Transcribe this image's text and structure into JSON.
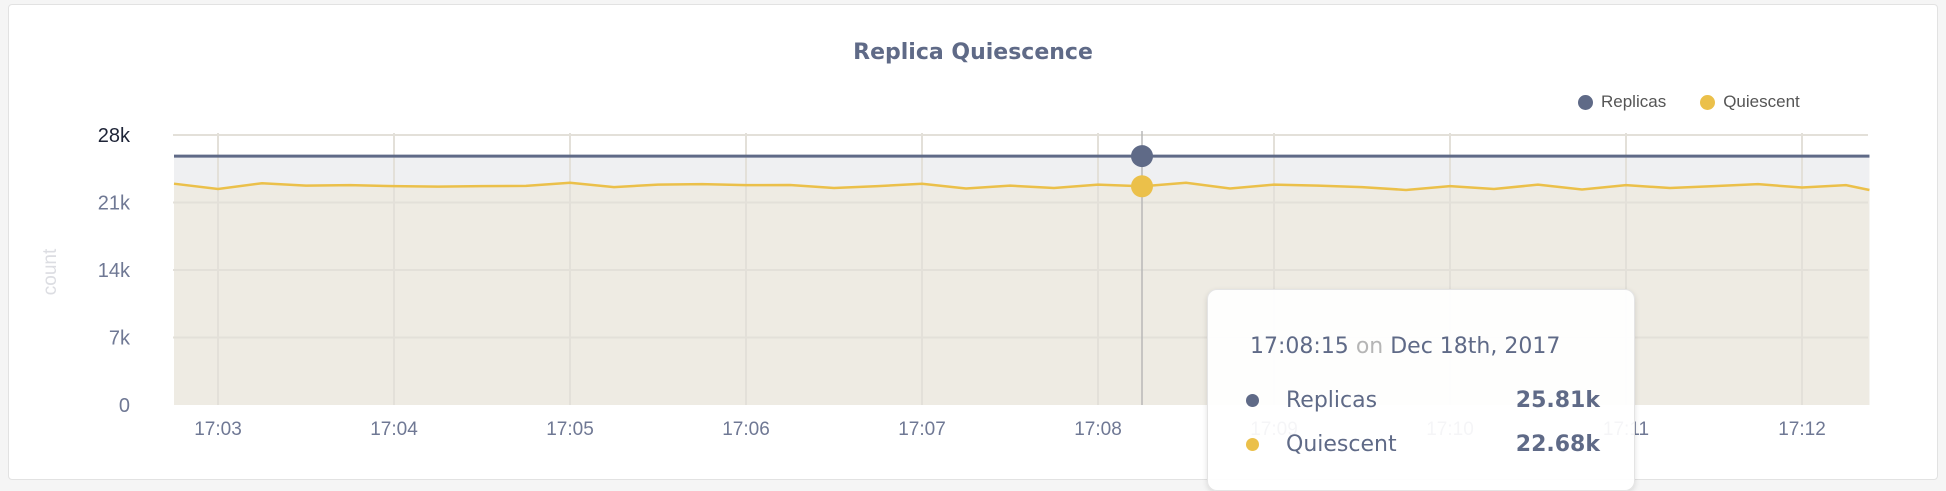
{
  "chart_data": {
    "type": "area",
    "title": "Replica Quiescence",
    "ylabel": "count",
    "xlabel": "",
    "ylim": [
      0,
      28000
    ],
    "yticks": [
      "0",
      "7k",
      "14k",
      "21k",
      "28k"
    ],
    "ytick_values": [
      0,
      7000,
      14000,
      21000,
      28000
    ],
    "xticks": [
      "17:03",
      "17:04",
      "17:05",
      "17:06",
      "17:07",
      "17:08",
      "17:09",
      "17:10",
      "17:11",
      "17:12"
    ],
    "xlim": [
      "17:02:45",
      "17:12:23"
    ],
    "grid": true,
    "legend_position": "top-right",
    "x": [
      "17:02:45",
      "17:03:00",
      "17:03:15",
      "17:03:30",
      "17:03:45",
      "17:04:00",
      "17:04:15",
      "17:04:30",
      "17:04:45",
      "17:05:00",
      "17:05:15",
      "17:05:30",
      "17:05:45",
      "17:06:00",
      "17:06:15",
      "17:06:30",
      "17:06:45",
      "17:07:00",
      "17:07:15",
      "17:07:30",
      "17:07:45",
      "17:08:00",
      "17:08:15",
      "17:08:30",
      "17:08:45",
      "17:09:00",
      "17:09:15",
      "17:09:30",
      "17:09:45",
      "17:10:00",
      "17:10:15",
      "17:10:30",
      "17:10:45",
      "17:11:00",
      "17:11:15",
      "17:11:30",
      "17:11:45",
      "17:12:00",
      "17:12:15",
      "17:12:23"
    ],
    "series": [
      {
        "name": "Replicas",
        "color": "#5f6a87",
        "values": [
          25810,
          25810,
          25810,
          25810,
          25810,
          25810,
          25810,
          25810,
          25810,
          25810,
          25810,
          25810,
          25810,
          25810,
          25810,
          25810,
          25810,
          25810,
          25810,
          25810,
          25810,
          25810,
          25810,
          25810,
          25810,
          25810,
          25810,
          25810,
          25810,
          25810,
          25810,
          25810,
          25810,
          25810,
          25810,
          25810,
          25810,
          25810,
          25810,
          25810
        ]
      },
      {
        "name": "Quiescent",
        "color": "#ebc04a",
        "values": [
          22950,
          22400,
          23000,
          22750,
          22800,
          22700,
          22650,
          22700,
          22720,
          23050,
          22600,
          22850,
          22900,
          22800,
          22820,
          22500,
          22700,
          22950,
          22450,
          22750,
          22500,
          22850,
          22680,
          23050,
          22450,
          22850,
          22750,
          22600,
          22300,
          22700,
          22400,
          22850,
          22350,
          22800,
          22500,
          22700,
          22900,
          22550,
          22800,
          22300
        ]
      }
    ],
    "tooltip": {
      "time": "17:08:15",
      "on": "on",
      "date": "Dec 18th, 2017",
      "rows": [
        {
          "label": "Replicas",
          "value": "25.81k"
        },
        {
          "label": "Quiescent",
          "value": "22.68k"
        }
      ]
    }
  }
}
